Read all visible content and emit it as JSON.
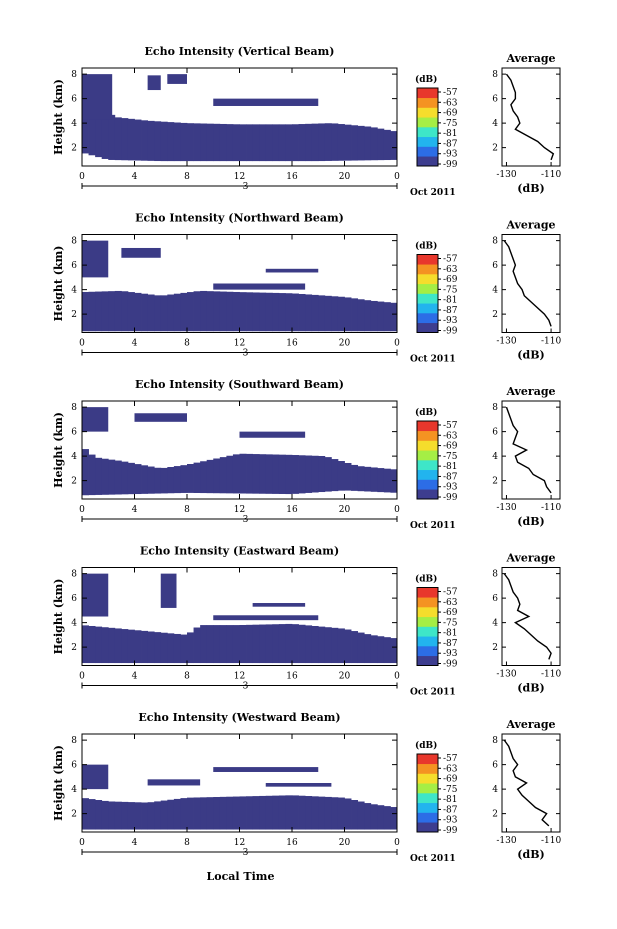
{
  "colorbar": {
    "unit": "(dB)",
    "labels": [
      "-57",
      "-63",
      "-69",
      "-75",
      "-81",
      "-87",
      "-93",
      "-99"
    ],
    "colors": [
      "#3d3d8f",
      "#2c6de6",
      "#22b4ee",
      "#3ee6c8",
      "#a5ee45",
      "#f5dd2c",
      "#f49322",
      "#e8372c"
    ]
  },
  "fill_color": "#3b3b86",
  "date_label": "Oct 2011",
  "x_label": "Local Time",
  "day_marker": "3",
  "chart_data": [
    {
      "type": "heatmap",
      "title": "Echo Intensity (Vertical Beam)",
      "ylabel": "Height (km)",
      "xlabel": "Local Time",
      "x_ticks": [
        "0",
        "4",
        "8",
        "12",
        "16",
        "20",
        "0"
      ],
      "y_ticks": [
        "2",
        "4",
        "6",
        "8"
      ],
      "xlim": [
        0,
        24
      ],
      "ylim": [
        0.5,
        8.5
      ],
      "mask_above": [
        [
          0,
          5.2
        ],
        [
          1.5,
          5.2
        ],
        [
          2.5,
          4.5
        ],
        [
          5,
          4.2
        ],
        [
          8,
          4.0
        ],
        [
          12,
          3.9
        ],
        [
          16,
          3.9
        ],
        [
          19,
          4.0
        ],
        [
          22,
          3.7
        ],
        [
          24,
          3.3
        ]
      ],
      "mask_below": [
        [
          0,
          1.6
        ],
        [
          2,
          1.0
        ],
        [
          6,
          0.9
        ],
        [
          12,
          0.9
        ],
        [
          18,
          0.9
        ],
        [
          24,
          1.0
        ]
      ],
      "aloft_layers": [
        [
          0,
          2.3,
          4.3,
          8.0
        ],
        [
          10,
          18,
          5.4,
          6.0
        ],
        [
          5,
          6,
          6.7,
          7.9
        ],
        [
          6.5,
          8,
          7.2,
          8.0
        ]
      ],
      "avg_plot": {
        "title": "Average",
        "xlabel": "(dB)",
        "x_ticks": [
          "-130",
          "-110"
        ],
        "y_ticks": [
          "2",
          "4",
          "6",
          "8"
        ],
        "xlim": [
          -132,
          -106
        ],
        "ylim": [
          0.5,
          8.5
        ],
        "heights": [
          1.0,
          1.5,
          2.0,
          2.5,
          3.0,
          3.5,
          4.0,
          4.5,
          5.0,
          5.5,
          6.0,
          6.5,
          7.0,
          7.5,
          8.0
        ],
        "values": [
          -110,
          -109,
          -113,
          -116,
          -121,
          -126,
          -124,
          -125,
          -127,
          -128,
          -126,
          -126,
          -127,
          -128,
          -130
        ]
      }
    },
    {
      "type": "heatmap",
      "title": "Echo Intensity (Northward Beam)",
      "ylabel": "Height (km)",
      "xlabel": "Local Time",
      "x_ticks": [
        "0",
        "4",
        "8",
        "12",
        "16",
        "20",
        "0"
      ],
      "y_ticks": [
        "2",
        "4",
        "6",
        "8"
      ],
      "xlim": [
        0,
        24
      ],
      "ylim": [
        0.5,
        8.5
      ],
      "mask_above": [
        [
          0,
          3.8
        ],
        [
          3,
          3.9
        ],
        [
          6,
          3.5
        ],
        [
          9,
          3.9
        ],
        [
          12,
          3.8
        ],
        [
          16,
          3.7
        ],
        [
          20,
          3.4
        ],
        [
          22,
          3.1
        ],
        [
          24,
          2.9
        ]
      ],
      "mask_below": [
        [
          0,
          0.6
        ],
        [
          24,
          0.6
        ]
      ],
      "aloft_layers": [
        [
          0,
          2.0,
          5.0,
          8.0
        ],
        [
          10,
          17,
          4.0,
          4.5
        ],
        [
          14,
          18,
          5.4,
          5.7
        ],
        [
          3,
          6,
          6.6,
          7.4
        ]
      ],
      "avg_plot": {
        "title": "Average",
        "xlabel": "(dB)",
        "x_ticks": [
          "-130",
          "-110"
        ],
        "y_ticks": [
          "2",
          "4",
          "6",
          "8"
        ],
        "xlim": [
          -132,
          -106
        ],
        "ylim": [
          0.5,
          8.5
        ],
        "heights": [
          1.0,
          1.5,
          2.0,
          2.5,
          3.0,
          3.5,
          4.0,
          4.5,
          5.0,
          5.5,
          6.0,
          6.5,
          7.0,
          7.5,
          8.0
        ],
        "values": [
          -110,
          -111,
          -113,
          -116,
          -119,
          -122,
          -123,
          -125,
          -126,
          -127,
          -126,
          -127,
          -128,
          -129,
          -131
        ]
      }
    },
    {
      "type": "heatmap",
      "title": "Echo Intensity (Southward Beam)",
      "ylabel": "Height (km)",
      "xlabel": "Local Time",
      "x_ticks": [
        "0",
        "4",
        "8",
        "12",
        "16",
        "20",
        "0"
      ],
      "y_ticks": [
        "2",
        "4",
        "6",
        "8"
      ],
      "xlim": [
        0,
        24
      ],
      "ylim": [
        0.5,
        8.5
      ],
      "mask_above": [
        [
          0,
          4.8
        ],
        [
          1,
          3.9
        ],
        [
          3,
          3.6
        ],
        [
          6,
          3.0
        ],
        [
          8,
          3.3
        ],
        [
          12,
          4.2
        ],
        [
          16,
          4.1
        ],
        [
          18.5,
          4.0
        ],
        [
          21,
          3.2
        ],
        [
          24,
          2.9
        ]
      ],
      "mask_below": [
        [
          0,
          0.8
        ],
        [
          8,
          1.0
        ],
        [
          16,
          0.9
        ],
        [
          20,
          1.2
        ],
        [
          24,
          1.0
        ]
      ],
      "aloft_layers": [
        [
          0,
          2.0,
          6.0,
          8.0
        ],
        [
          12,
          17,
          5.5,
          6.0
        ],
        [
          4,
          8,
          6.8,
          7.5
        ]
      ],
      "avg_plot": {
        "title": "Average",
        "xlabel": "(dB)",
        "x_ticks": [
          "-130",
          "-110"
        ],
        "y_ticks": [
          "2",
          "4",
          "6",
          "8"
        ],
        "xlim": [
          -132,
          -106
        ],
        "ylim": [
          0.5,
          8.5
        ],
        "heights": [
          1.0,
          1.5,
          2.0,
          2.5,
          3.0,
          3.5,
          4.0,
          4.5,
          5.0,
          5.5,
          6.0,
          6.5,
          7.0,
          7.5,
          8.0
        ],
        "values": [
          -110,
          -112,
          -113,
          -118,
          -120,
          -125,
          -126,
          -121,
          -127,
          -126,
          -125,
          -127,
          -128,
          -129,
          -130
        ]
      }
    },
    {
      "type": "heatmap",
      "title": "Echo Intensity (Eastward Beam)",
      "ylabel": "Height (km)",
      "xlabel": "Local Time",
      "x_ticks": [
        "0",
        "4",
        "8",
        "12",
        "16",
        "20",
        "0"
      ],
      "y_ticks": [
        "2",
        "4",
        "6",
        "8"
      ],
      "xlim": [
        0,
        24
      ],
      "ylim": [
        0.5,
        8.5
      ],
      "mask_above": [
        [
          0,
          3.8
        ],
        [
          4,
          3.4
        ],
        [
          8,
          3.0
        ],
        [
          9,
          3.8
        ],
        [
          12,
          3.8
        ],
        [
          16,
          3.9
        ],
        [
          20,
          3.5
        ],
        [
          22,
          3.0
        ],
        [
          24,
          2.7
        ]
      ],
      "mask_below": [
        [
          0,
          0.7
        ],
        [
          24,
          0.7
        ]
      ],
      "aloft_layers": [
        [
          0,
          2.0,
          4.5,
          8.0
        ],
        [
          6,
          7.2,
          5.2,
          8.0
        ],
        [
          10,
          18,
          4.2,
          4.6
        ],
        [
          13,
          17,
          5.3,
          5.6
        ]
      ],
      "avg_plot": {
        "title": "Average",
        "xlabel": "(dB)",
        "x_ticks": [
          "-130",
          "-110"
        ],
        "y_ticks": [
          "2",
          "4",
          "6",
          "8"
        ],
        "xlim": [
          -132,
          -106
        ],
        "ylim": [
          0.5,
          8.5
        ],
        "heights": [
          1.0,
          1.5,
          2.0,
          2.5,
          3.0,
          3.5,
          4.0,
          4.5,
          5.0,
          5.5,
          6.0,
          6.5,
          7.0,
          7.5,
          8.0
        ],
        "values": [
          -111,
          -110,
          -112,
          -116,
          -119,
          -122,
          -126,
          -120,
          -125,
          -124,
          -125,
          -127,
          -128,
          -129,
          -131
        ]
      }
    },
    {
      "type": "heatmap",
      "title": "Echo Intensity (Westward Beam)",
      "ylabel": "Height (km)",
      "xlabel": "Local Time",
      "x_ticks": [
        "0",
        "4",
        "8",
        "12",
        "16",
        "20",
        "0"
      ],
      "y_ticks": [
        "2",
        "4",
        "6",
        "8"
      ],
      "xlim": [
        0,
        24
      ],
      "ylim": [
        0.5,
        8.5
      ],
      "mask_above": [
        [
          0,
          3.3
        ],
        [
          2,
          3.0
        ],
        [
          5,
          2.9
        ],
        [
          8,
          3.3
        ],
        [
          12,
          3.4
        ],
        [
          16,
          3.5
        ],
        [
          20,
          3.3
        ],
        [
          22,
          2.8
        ],
        [
          24,
          2.5
        ]
      ],
      "mask_below": [
        [
          0,
          0.7
        ],
        [
          24,
          0.7
        ]
      ],
      "aloft_layers": [
        [
          0,
          2.0,
          4.0,
          6.0
        ],
        [
          5,
          9,
          4.3,
          4.8
        ],
        [
          10,
          18,
          5.4,
          5.8
        ],
        [
          14,
          19,
          4.2,
          4.5
        ]
      ],
      "avg_plot": {
        "title": "Average",
        "xlabel": "(dB)",
        "x_ticks": [
          "-130",
          "-110"
        ],
        "y_ticks": [
          "2",
          "4",
          "6",
          "8"
        ],
        "xlim": [
          -132,
          -106
        ],
        "ylim": [
          0.5,
          8.5
        ],
        "heights": [
          1.0,
          1.5,
          2.0,
          2.5,
          3.0,
          3.5,
          4.0,
          4.5,
          5.0,
          5.5,
          6.0,
          6.5,
          7.0,
          7.5,
          8.0
        ],
        "values": [
          -111,
          -114,
          -112,
          -117,
          -120,
          -123,
          -125,
          -121,
          -126,
          -127,
          -125,
          -127,
          -128,
          -129,
          -131
        ]
      }
    }
  ]
}
